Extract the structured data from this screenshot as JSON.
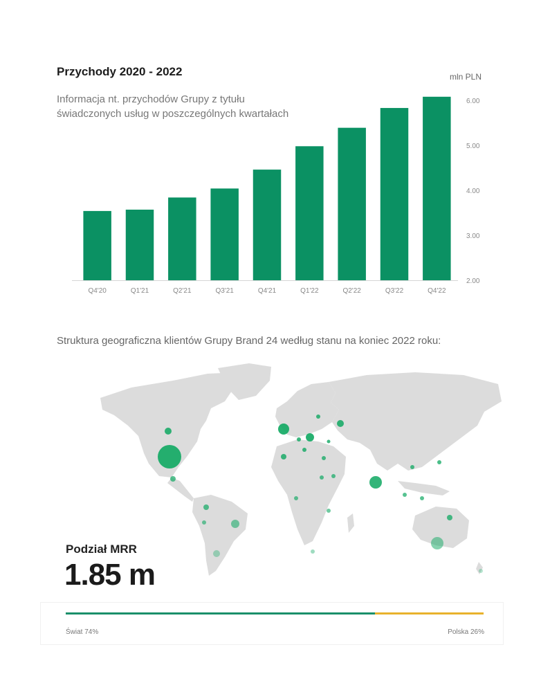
{
  "chart_data": {
    "type": "bar",
    "title": "Przychody 2020 - 2022",
    "subtitle": "Informacja nt. przychodów Grupy z tytułu świadczonych usług w poszczególnych kwartałach",
    "ylabel": "mln PLN",
    "categories": [
      "Q4'20",
      "Q1'21",
      "Q2'21",
      "Q3'21",
      "Q4'21",
      "Q1'22",
      "Q2'22",
      "Q3'22",
      "Q4'22"
    ],
    "values": [
      3.54,
      3.57,
      3.84,
      4.04,
      4.46,
      4.98,
      5.39,
      5.83,
      6.08
    ],
    "ylim": [
      2.0,
      6.0
    ],
    "yticks": [
      "2.00",
      "3.00",
      "4.00",
      "5.00",
      "6.00"
    ],
    "bar_color": "#0b9163",
    "axis_position": "right",
    "grid": false
  },
  "map": {
    "caption": "Struktura geograficzna klientów Grupy Brand 24 według stanu na koniec 2022 roku:",
    "land_color": "#dcdcdc",
    "marker_color": "#0fa862"
  },
  "mrr": {
    "label": "Podział MRR",
    "value": "1.85 m",
    "world": {
      "label": "Świat 74%",
      "share": 74,
      "color": "#1a8f6a"
    },
    "poland": {
      "label": "Polska 26%",
      "share": 26,
      "color": "#e8b22c"
    }
  }
}
